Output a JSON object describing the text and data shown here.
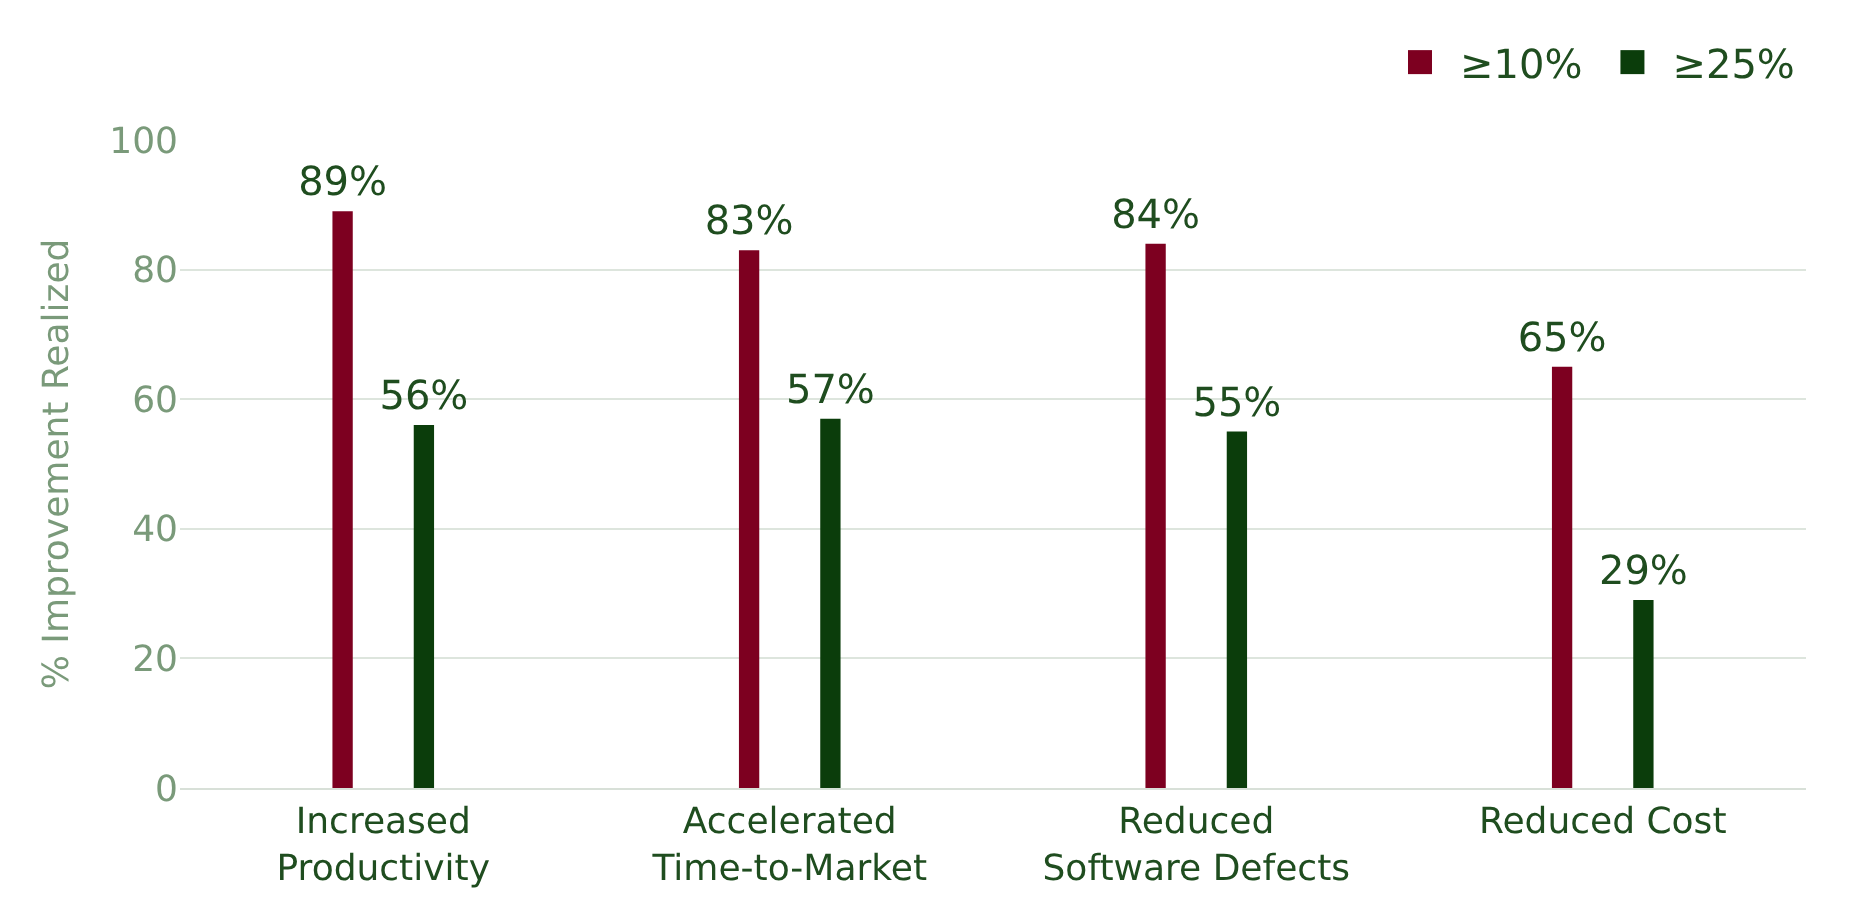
{
  "chart_data": {
    "type": "bar",
    "ylabel": "% Improvement Realized",
    "categories": [
      "Increased\nProductivity",
      "Accelerated\nTime-to-Market",
      "Reduced\nSoftware Defects",
      "Reduced Cost"
    ],
    "series": [
      {
        "name": "≥10%",
        "color": "#7d0020",
        "values": [
          89,
          83,
          84,
          65
        ],
        "value_labels": [
          "89%",
          "83%",
          "84%",
          "65%"
        ]
      },
      {
        "name": "≥25%",
        "color": "#0b3d0b",
        "values": [
          56,
          57,
          55,
          29
        ],
        "value_labels": [
          "56%",
          "57%",
          "55%",
          "29%"
        ]
      }
    ],
    "ylim": [
      0,
      100
    ],
    "yticks": [
      0,
      20,
      40,
      60,
      80,
      100
    ],
    "grid": "y",
    "legend": "top right"
  }
}
